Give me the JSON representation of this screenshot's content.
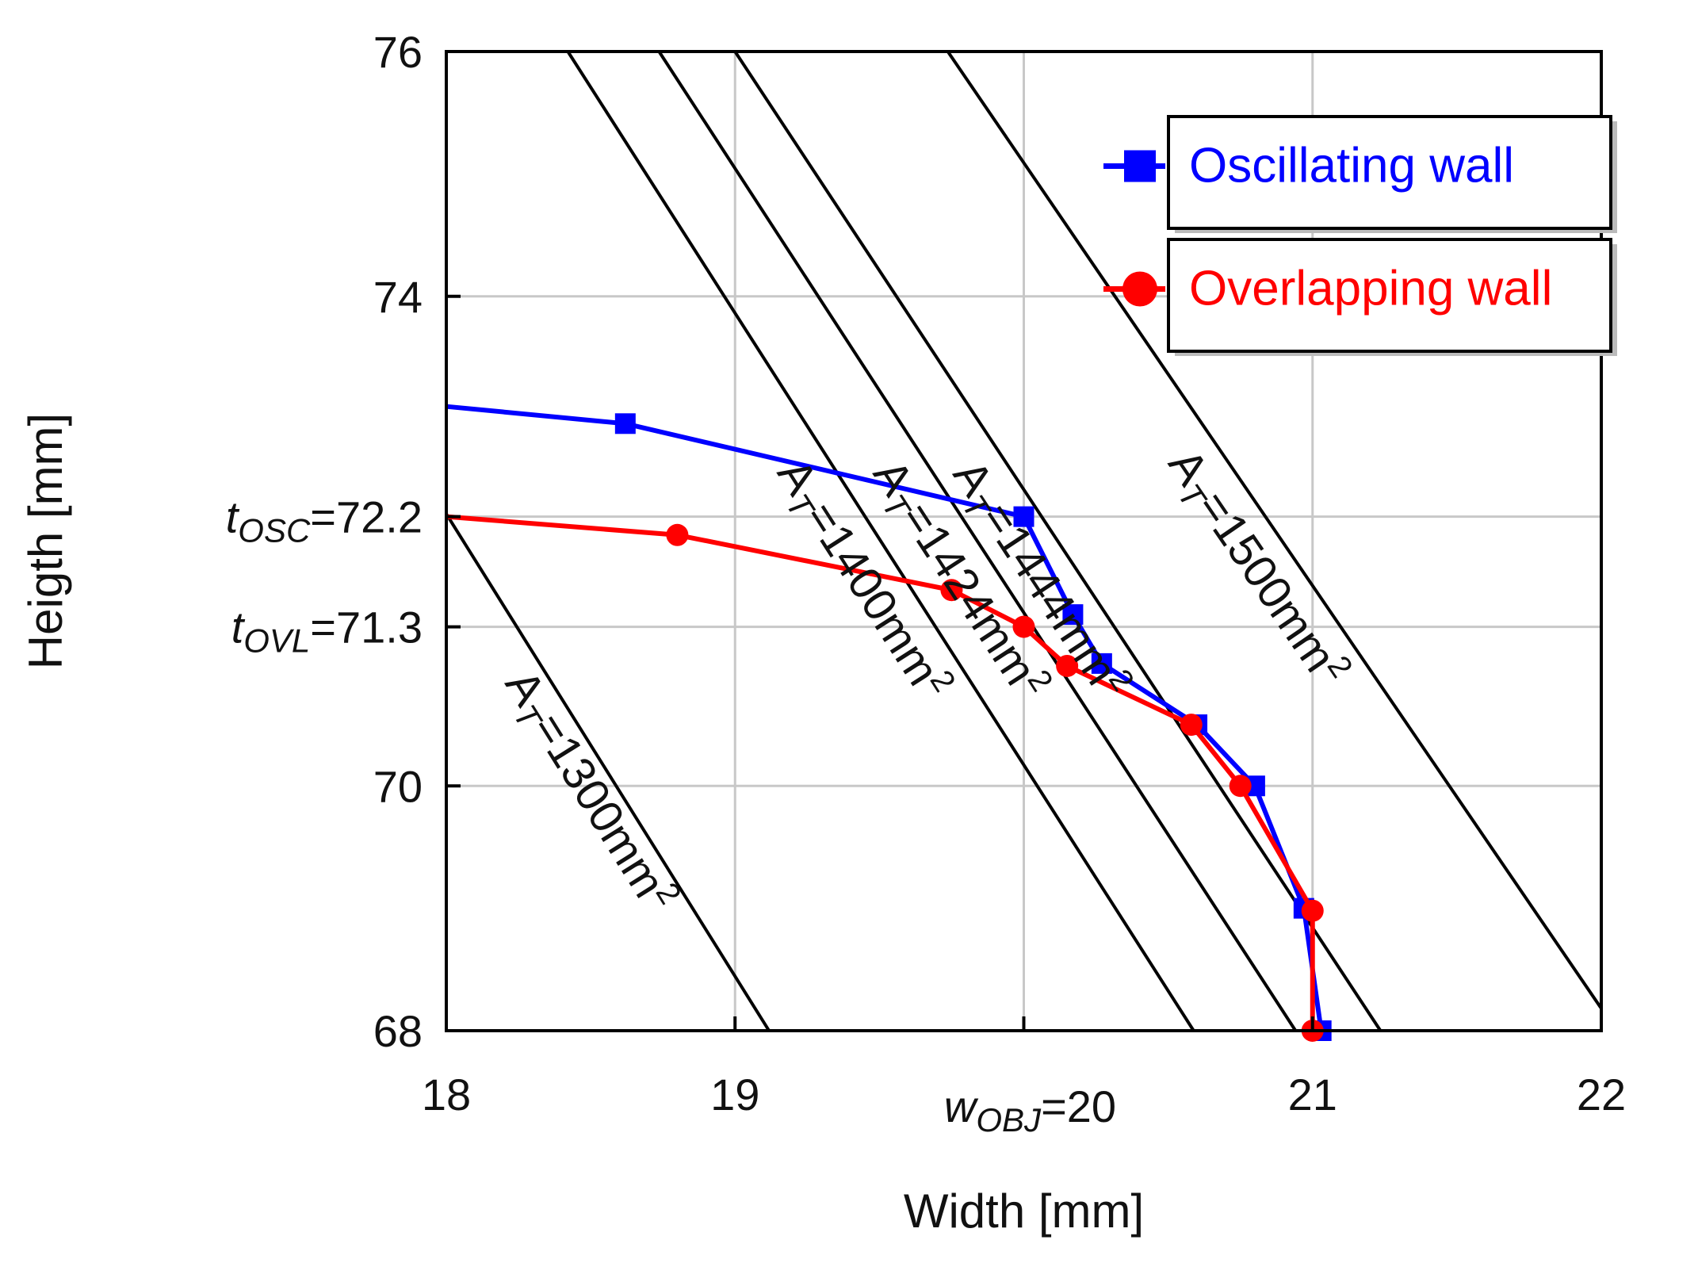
{
  "chart_data": {
    "type": "line",
    "xlabel": "Width [mm]",
    "ylabel": "Heigth [mm]",
    "xlim": [
      18,
      22
    ],
    "ylim": [
      68,
      76
    ],
    "x_ticks": [
      18,
      19,
      21,
      22
    ],
    "y_ticks": [
      68,
      70,
      74,
      76
    ],
    "annotated_x_ticks": [
      {
        "value": 20,
        "base": "w",
        "sub": "OBJ",
        "rest": "=20"
      }
    ],
    "annotated_y_ticks": [
      {
        "value": 72.2,
        "base": "t",
        "sub": "OSC",
        "rest": "=72.2"
      },
      {
        "value": 71.3,
        "base": "t",
        "sub": "OVL",
        "rest": "=71.3"
      }
    ],
    "grid": true,
    "legend_position": "top-right",
    "series": [
      {
        "name": "Oscillating wall",
        "color": "#0000ff",
        "marker": "square",
        "x": [
          18.0,
          18.62,
          20.0,
          20.17,
          20.27,
          20.6,
          20.8,
          20.97,
          21.03
        ],
        "y": [
          73.1,
          72.96,
          72.2,
          71.4,
          71.0,
          70.5,
          70.0,
          69.0,
          68.0
        ]
      },
      {
        "name": "Overlapping wall",
        "color": "#ff0000",
        "marker": "circle",
        "x": [
          18.0,
          18.8,
          19.75,
          20.0,
          20.15,
          20.58,
          20.75,
          21.0,
          21.0
        ],
        "y": [
          72.2,
          72.05,
          71.6,
          71.3,
          70.98,
          70.5,
          70.0,
          68.98,
          68.0
        ]
      }
    ],
    "area_isolines": [
      {
        "area": 1300,
        "label": "A",
        "sub": "T",
        "rest": "=1300mm",
        "sup": "2"
      },
      {
        "area": 1400,
        "label": "A",
        "sub": "T",
        "rest": "=1400mm",
        "sup": "2"
      },
      {
        "area": 1424,
        "label": "A",
        "sub": "T",
        "rest": "=1424mm",
        "sup": "2"
      },
      {
        "area": 1444,
        "label": "A",
        "sub": "T",
        "rest": "=1444mm",
        "sup": "2"
      },
      {
        "area": 1500,
        "label": "A",
        "sub": "T",
        "rest": "=1500mm",
        "sup": "2"
      }
    ]
  }
}
